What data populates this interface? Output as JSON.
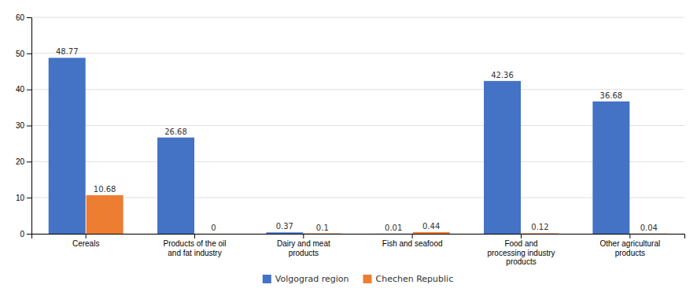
{
  "chart_data": {
    "type": "bar",
    "categories": [
      "Cereals",
      "Products of the oil\nand fat industry",
      "Dairy and meat\nproducts",
      "Fish and seafood",
      "Food and\nprocessing industry\nproducts",
      "Other agricultural\nproducts"
    ],
    "series": [
      {
        "name": "Volgograd region",
        "color": "#4472C4",
        "values": [
          48.77,
          26.68,
          0.37,
          0.01,
          42.36,
          36.68
        ]
      },
      {
        "name": "Chechen Republic",
        "color": "#ED7D31",
        "values": [
          10.68,
          0,
          0.1,
          0.44,
          0.12,
          0.04
        ]
      }
    ],
    "ylim": [
      0,
      60
    ],
    "yticks": [
      0,
      10,
      20,
      30,
      40,
      50,
      60
    ],
    "grid": true,
    "legend": "bottom",
    "data_labels": true
  }
}
